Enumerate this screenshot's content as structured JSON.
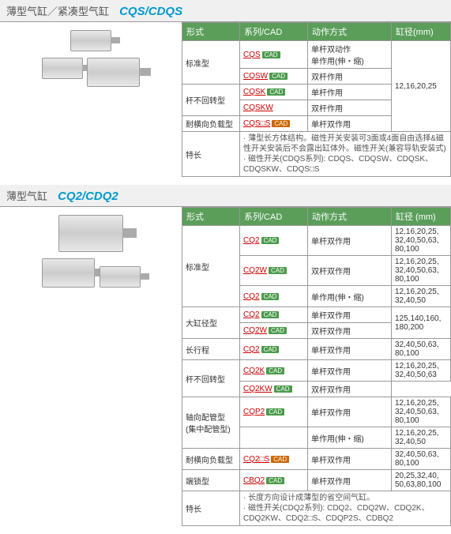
{
  "section1": {
    "title": "薄型气缸／紧凑型气缸",
    "code": "CQS/CDQS",
    "headers": [
      "形式",
      "系列/CAD",
      "动作方式",
      "缸径(mm)"
    ],
    "bore": "12,16,20,25",
    "rows": [
      {
        "type": "标准型",
        "typespan": 2,
        "series": "CQS",
        "cad": true,
        "action": "单杆双动作\n单作用(伸・缩)"
      },
      {
        "series": "CQSW",
        "cad": true,
        "action": "双杆作用"
      },
      {
        "type": "杆不回转型",
        "typespan": 2,
        "series": "CQSK",
        "cad": true,
        "action": "单杆作用"
      },
      {
        "series": "CQSKW",
        "action": "双杆作用"
      },
      {
        "type": "耐横向负载型",
        "series": "CQS□S",
        "cads": true,
        "action": "单杆双作用"
      }
    ],
    "feature_label": "特长",
    "feature": "· 薄型长方体结构。磁性开关安装可3面或4面自由选择&磁性开关安装后不会露出缸体外。磁性开关(兼容导轨安装式)\n· 磁性开关(CDQS系列): CDQS、CDQSW、CDQSK、CDQSKW、CDQS□S"
  },
  "section2": {
    "title": "薄型气缸",
    "code": "CQ2/CDQ2",
    "headers": [
      "形式",
      "系列/CAD",
      "动作方式",
      "缸径 (mm)"
    ],
    "rows": [
      {
        "type": "标准型",
        "typespan": 3,
        "series": "CQ2",
        "cad": true,
        "action": "单杆双作用",
        "bore": "12,16,20,25,\n32,40,50,63,\n80,100"
      },
      {
        "series": "CQ2W",
        "cad": true,
        "action": "双杆双作用",
        "bore": "12,16,20,25,\n32,40,50,63,\n80,100"
      },
      {
        "series": "CQ2",
        "cad": true,
        "action": "单作用(伸・缩)",
        "bore": "12,16,20,25,\n32,40,50"
      },
      {
        "type": "大缸径型",
        "typespan": 2,
        "series": "CQ2",
        "cad": true,
        "action": "单杆双作用",
        "bore": "125,140,160,\n180,200"
      },
      {
        "series": "CQ2W",
        "cad": true,
        "action": "双杆双作用"
      },
      {
        "type": "长行程",
        "series": "CQ2",
        "cad": true,
        "action": "单杆双作用",
        "bore": "32,40,50,63,\n80,100"
      },
      {
        "type": "杆不回转型",
        "typespan": 2,
        "series": "CQ2K",
        "cad": true,
        "action": "单杆双作用",
        "bore": "12,16,20,25,\n32,40,50,63"
      },
      {
        "series": "CQ2KW",
        "cad": true,
        "action": "双杆双作用"
      },
      {
        "type": "轴向配管型\n(集中配管型)",
        "typespan": 2,
        "series": "CQP2",
        "cad": true,
        "action": "单杆双作用",
        "bore": "12,16,20,25,\n32,40,50,63,\n80,100"
      },
      {
        "series": "",
        "action": "单作用(伸・缩)",
        "bore": "12,16,20,25,\n32,40,50"
      },
      {
        "type": "耐横向负载型",
        "series": "CQ2□S",
        "cads": true,
        "action": "单杆双作用",
        "bore": "32,40,50,63,\n80,100"
      },
      {
        "type": "端锁型",
        "series": "CBQ2",
        "cad": true,
        "action": "单杆双作用",
        "bore": "20,25,32,40,\n50,63,80,100"
      }
    ],
    "feature_label": "特长",
    "feature": "· 长度方向设计成薄型的省空间气缸。\n· 磁性开关(CDQ2系列): CDQ2、CDQ2W、CDQ2K、CDQ2KW、CDQ2□S、CDQP2S、CDBQ2"
  },
  "cad_label": "CAD"
}
